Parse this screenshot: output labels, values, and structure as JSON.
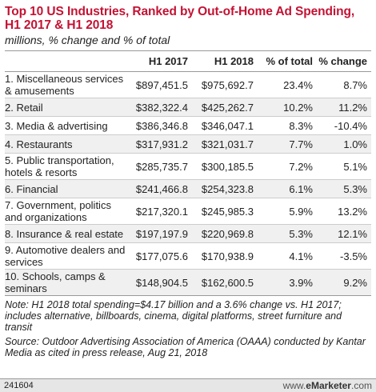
{
  "title": "Top 10 US Industries, Ranked by Out-of-Home Ad Spending, H1 2017 & H1 2018",
  "subtitle": "millions, % change and % of total",
  "table": {
    "headers": [
      "",
      "H1 2017",
      "H1 2018",
      "% of total",
      "% change"
    ],
    "rows": [
      {
        "label": "1. Miscellaneous services & amusements",
        "h1_2017": "$897,451.5",
        "h1_2018": "$975,692.7",
        "pct_total": "23.4%",
        "pct_change": "8.7%"
      },
      {
        "label": "2. Retail",
        "h1_2017": "$382,322.4",
        "h1_2018": "$425,262.7",
        "pct_total": "10.2%",
        "pct_change": "11.2%"
      },
      {
        "label": "3. Media & advertising",
        "h1_2017": "$386,346.8",
        "h1_2018": "$346,047.1",
        "pct_total": "8.3%",
        "pct_change": "-10.4%"
      },
      {
        "label": "4. Restaurants",
        "h1_2017": "$317,931.2",
        "h1_2018": "$321,031.7",
        "pct_total": "7.7%",
        "pct_change": "1.0%"
      },
      {
        "label": "5. Public transportation, hotels & resorts",
        "h1_2017": "$285,735.7",
        "h1_2018": "$300,185.5",
        "pct_total": "7.2%",
        "pct_change": "5.1%"
      },
      {
        "label": "6. Financial",
        "h1_2017": "$241,466.8",
        "h1_2018": "$254,323.8",
        "pct_total": "6.1%",
        "pct_change": "5.3%"
      },
      {
        "label": "7. Government, politics and organizations",
        "h1_2017": "$217,320.1",
        "h1_2018": "$245,985.3",
        "pct_total": "5.9%",
        "pct_change": "13.2%"
      },
      {
        "label": "8. Insurance & real estate",
        "h1_2017": "$197,197.9",
        "h1_2018": "$220,969.8",
        "pct_total": "5.3%",
        "pct_change": "12.1%"
      },
      {
        "label": "9. Automotive dealers and services",
        "h1_2017": "$177,075.6",
        "h1_2018": "$170,938.9",
        "pct_total": "4.1%",
        "pct_change": "-3.5%"
      },
      {
        "label": "10. Schools, camps & seminars",
        "h1_2017": "$148,904.5",
        "h1_2018": "$162,600.5",
        "pct_total": "3.9%",
        "pct_change": "9.2%"
      }
    ]
  },
  "note": "Note: H1 2018 total spending=$4.17 billion and a 3.6% change vs. H1 2017; includes alternative, billboards, cinema, digital platforms, street furniture and transit",
  "source": "Source: Outdoor Advertising Association of America (OAAA) conducted by Kantar Media as cited in press release, Aug 21, 2018",
  "footer": {
    "chart_id": "241604",
    "brand_www": "www.",
    "brand_e": "e",
    "brand_name": "Marketer",
    "brand_com": ".com"
  },
  "colors": {
    "title": "#c41233",
    "alt_row": "#f0f0f0",
    "footer_bg": "#e6e6e6"
  },
  "chart_data": {
    "type": "table",
    "title": "Top 10 US Industries, Ranked by Out-of-Home Ad Spending, H1 2017 & H1 2018",
    "subtitle": "millions, % change and % of total",
    "columns": [
      "H1 2017",
      "H1 2018",
      "% of total",
      "% change"
    ],
    "categories": [
      "1. Miscellaneous services & amusements",
      "2. Retail",
      "3. Media & advertising",
      "4. Restaurants",
      "5. Public transportation, hotels & resorts",
      "6. Financial",
      "7. Government, politics and organizations",
      "8. Insurance & real estate",
      "9. Automotive dealers and services",
      "10. Schools, camps & seminars"
    ],
    "series": [
      {
        "name": "H1 2017",
        "values": [
          897451.5,
          382322.4,
          386346.8,
          317931.2,
          285735.7,
          241466.8,
          217320.1,
          197197.9,
          177075.6,
          148904.5
        ]
      },
      {
        "name": "H1 2018",
        "values": [
          975692.7,
          425262.7,
          346047.1,
          321031.7,
          300185.5,
          254323.8,
          245985.3,
          220969.8,
          170938.9,
          162600.5
        ]
      },
      {
        "name": "% of total",
        "values": [
          23.4,
          10.2,
          8.3,
          7.7,
          7.2,
          6.1,
          5.9,
          5.3,
          4.1,
          3.9
        ]
      },
      {
        "name": "% change",
        "values": [
          8.7,
          11.2,
          -10.4,
          1.0,
          5.1,
          5.3,
          13.2,
          12.1,
          -3.5,
          9.2
        ]
      }
    ]
  }
}
